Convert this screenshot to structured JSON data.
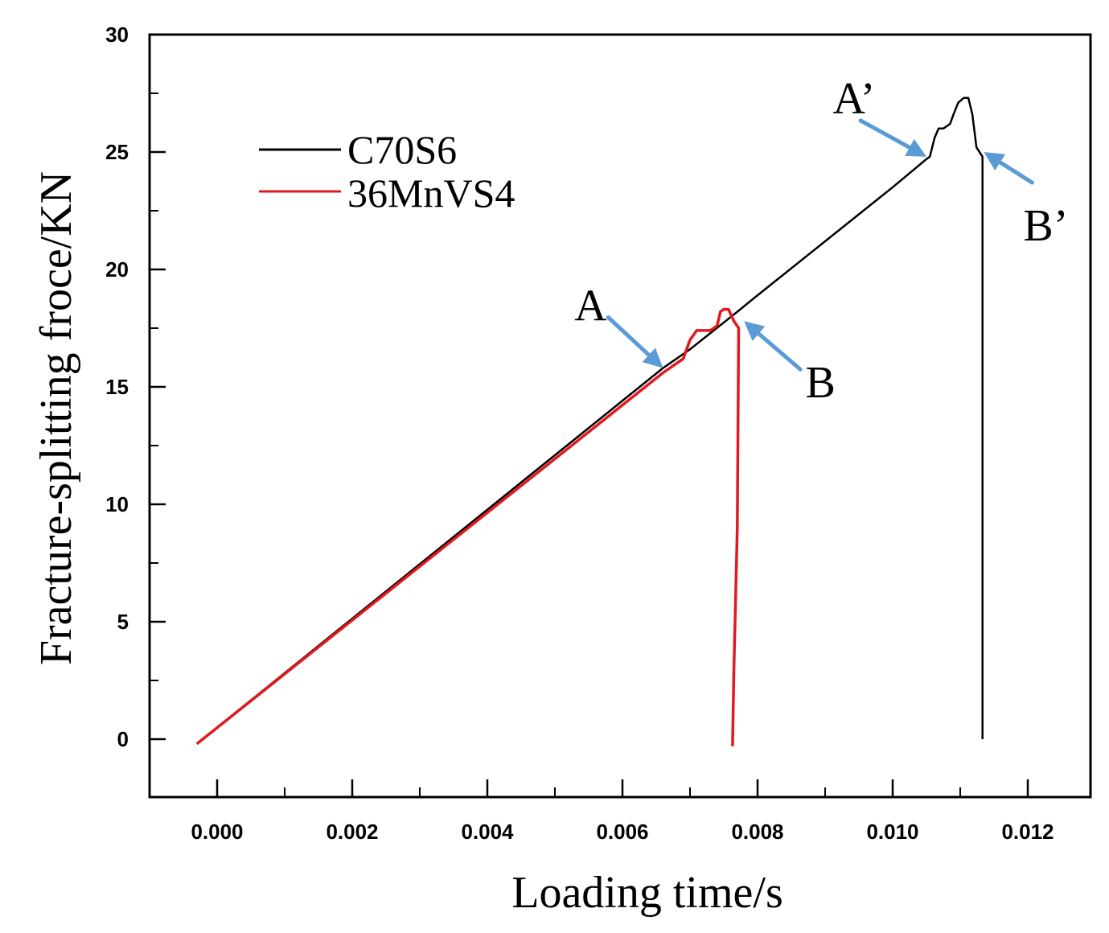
{
  "chart_data": {
    "type": "line",
    "title": "",
    "xlabel": "Loading time/s",
    "ylabel": "Fracture-splitting froce/KN",
    "xlim": [
      -0.0005,
      0.013
    ],
    "ylim": [
      -2.5,
      30
    ],
    "xticks": [
      0.0,
      0.002,
      0.004,
      0.006,
      0.008,
      0.01,
      0.012
    ],
    "xtick_labels": [
      "0.000",
      "0.002",
      "0.004",
      "0.006",
      "0.008",
      "0.010",
      "0.012"
    ],
    "yticks": [
      0,
      5,
      10,
      15,
      20,
      25,
      30
    ],
    "ytick_labels": [
      "0",
      "5",
      "10",
      "15",
      "20",
      "25",
      "30"
    ],
    "grid": false,
    "legend_position": "top-left",
    "series": [
      {
        "name": "C70S6",
        "color": "#000000",
        "x": [
          -0.0003,
          0.0066,
          0.007,
          0.0077,
          0.008,
          0.009,
          0.01,
          0.0105,
          0.01055,
          0.01062,
          0.01068,
          0.01075,
          0.01085,
          0.0109,
          0.01097,
          0.01105,
          0.01112,
          0.01118,
          0.01124,
          0.01133,
          0.01133
        ],
        "y": [
          -0.2,
          15.8,
          16.6,
          18.2,
          18.9,
          21.2,
          23.5,
          24.7,
          24.8,
          25.6,
          26.0,
          26.0,
          26.2,
          26.6,
          27.1,
          27.3,
          27.3,
          26.6,
          25.2,
          24.8,
          0.0
        ]
      },
      {
        "name": "36MnVS4",
        "color": "#e0191e",
        "x": [
          -0.0003,
          0.0066,
          0.0068,
          0.0069,
          0.007,
          0.0071,
          0.0072,
          0.0073,
          0.0074,
          0.00745,
          0.0075,
          0.00757,
          0.00765,
          0.00772,
          0.0077,
          0.00765,
          0.00763
        ],
        "y": [
          -0.2,
          15.6,
          16.0,
          16.2,
          17.0,
          17.4,
          17.4,
          17.4,
          17.6,
          18.2,
          18.3,
          18.3,
          17.8,
          17.5,
          9.0,
          3.0,
          -0.3
        ]
      }
    ],
    "annotations": [
      {
        "label": "A",
        "x": 0.0066,
        "y": 15.8
      },
      {
        "label": "B",
        "x": 0.0078,
        "y": 17.8
      },
      {
        "label": "A’",
        "x": 0.0105,
        "y": 24.8
      },
      {
        "label": "B’",
        "x": 0.01135,
        "y": 25.0
      }
    ],
    "arrow_color": "#5b9bd5"
  }
}
